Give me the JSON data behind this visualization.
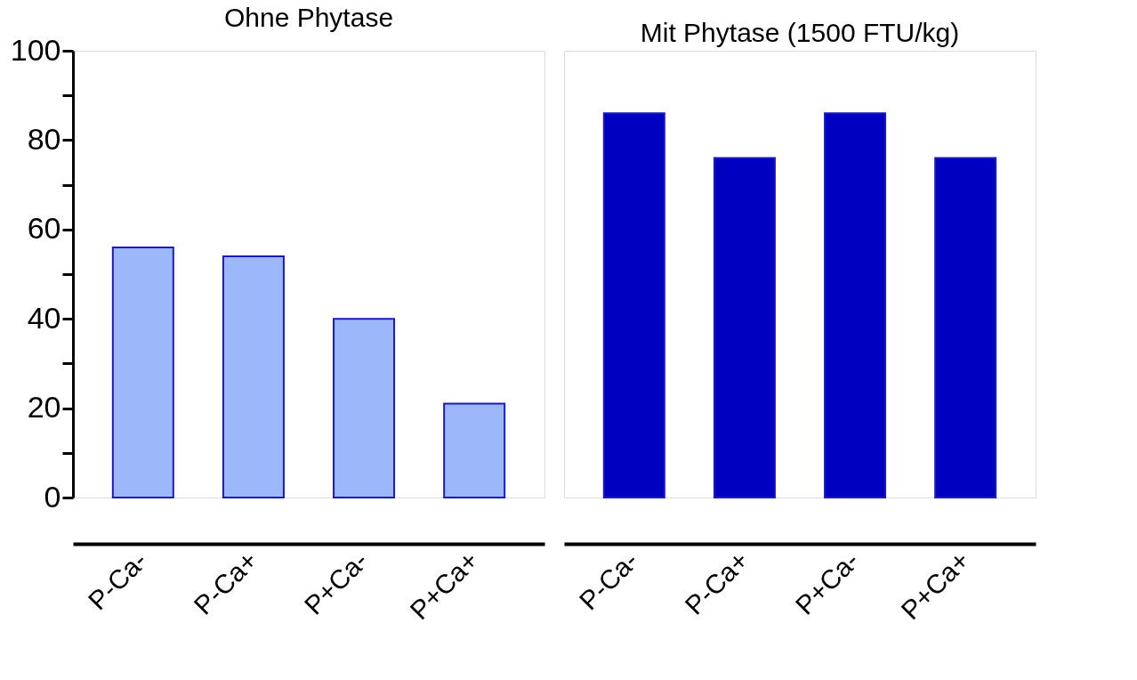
{
  "chart_data": [
    {
      "type": "bar",
      "title": "Ohne Phytase",
      "categories": [
        "P-Ca-",
        "P-Ca+",
        "P+Ca-",
        "P+Ca+"
      ],
      "values": [
        56,
        54,
        40,
        21
      ],
      "color": "#9db8fa",
      "ylim": [
        0,
        100
      ],
      "yticks": [
        0,
        {
          "value": 10,
          "label": null
        },
        20,
        {
          "value": 30,
          "label": null
        },
        40,
        {
          "value": 50,
          "label": null
        },
        60,
        {
          "value": 70,
          "label": null
        },
        80,
        {
          "value": 90,
          "label": null
        },
        100
      ],
      "grid": false
    },
    {
      "type": "bar",
      "title": "Mit Phytase (1500 FTU/kg)",
      "categories": [
        "P-Ca-",
        "P-Ca+",
        "P+Ca-",
        "P+Ca+"
      ],
      "values": [
        86,
        76,
        86,
        76
      ],
      "color": "#0000c0",
      "ylim": [
        0,
        100
      ],
      "tick_labels": "x",
      "grid": false
    }
  ]
}
